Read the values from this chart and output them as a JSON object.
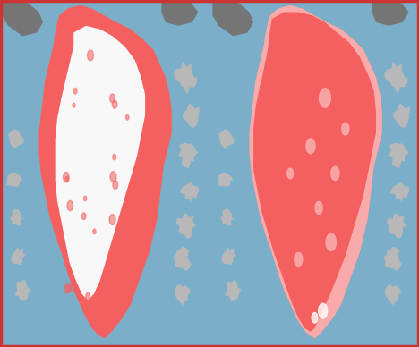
{
  "fig_width": 4.68,
  "fig_height": 3.88,
  "dpi": 100,
  "ocean_color": "#7baec9",
  "land_gray_color": "#b8b8b8",
  "ice_white_color": "#f8f8f8",
  "melt_dark_color": "#f46060",
  "melt_light_color": "#f9aaaa",
  "dark_land_color": "#757575",
  "border_color": "#cc3333"
}
